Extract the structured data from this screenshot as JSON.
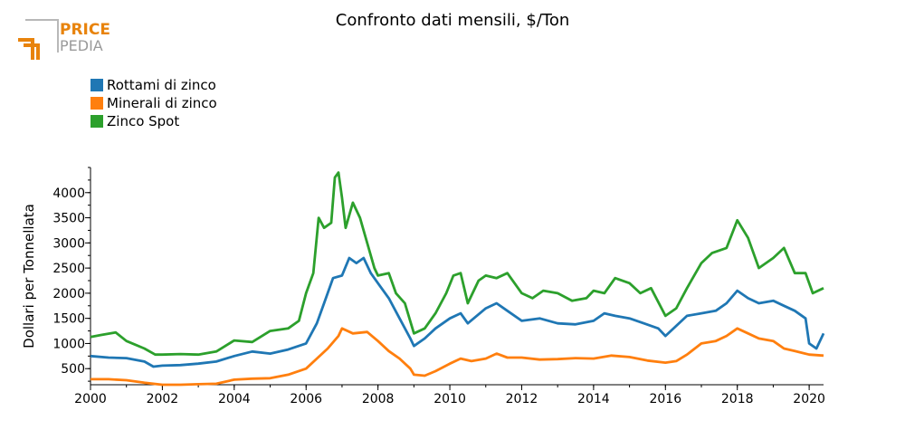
{
  "logo": {
    "line1": "PRICE",
    "line2": "PEDIA",
    "accent": "#e8830c",
    "gray": "#9a9a9a"
  },
  "chart_data": {
    "type": "line",
    "title": "Confronto dati mensili, $/Ton",
    "xlabel": "",
    "ylabel": "Dollari per Tonnellata",
    "xlim": [
      2000,
      2020.4
    ],
    "ylim": [
      180,
      4500
    ],
    "xticks": [
      2000,
      2002,
      2004,
      2006,
      2008,
      2010,
      2012,
      2014,
      2016,
      2018,
      2020
    ],
    "yticks": [
      500,
      1000,
      1500,
      2000,
      2500,
      3000,
      3500,
      4000
    ],
    "grid": false,
    "legend_position": "top-left",
    "series": [
      {
        "name": "Rottami di zinco",
        "color": "#1f77b4",
        "points": [
          [
            2000,
            750
          ],
          [
            2000.5,
            720
          ],
          [
            2001,
            710
          ],
          [
            2001.5,
            640
          ],
          [
            2001.75,
            540
          ],
          [
            2002,
            560
          ],
          [
            2002.5,
            570
          ],
          [
            2003,
            600
          ],
          [
            2003.5,
            640
          ],
          [
            2004,
            750
          ],
          [
            2004.5,
            840
          ],
          [
            2005,
            800
          ],
          [
            2005.5,
            880
          ],
          [
            2006,
            1000
          ],
          [
            2006.3,
            1400
          ],
          [
            2006.5,
            1800
          ],
          [
            2006.75,
            2300
          ],
          [
            2007,
            2350
          ],
          [
            2007.2,
            2700
          ],
          [
            2007.4,
            2600
          ],
          [
            2007.6,
            2700
          ],
          [
            2007.8,
            2400
          ],
          [
            2008,
            2200
          ],
          [
            2008.3,
            1900
          ],
          [
            2008.6,
            1500
          ],
          [
            2008.9,
            1100
          ],
          [
            2009,
            950
          ],
          [
            2009.3,
            1100
          ],
          [
            2009.6,
            1300
          ],
          [
            2010,
            1500
          ],
          [
            2010.3,
            1600
          ],
          [
            2010.5,
            1400
          ],
          [
            2011,
            1700
          ],
          [
            2011.3,
            1800
          ],
          [
            2011.6,
            1650
          ],
          [
            2012,
            1450
          ],
          [
            2012.5,
            1500
          ],
          [
            2013,
            1400
          ],
          [
            2013.5,
            1380
          ],
          [
            2014,
            1450
          ],
          [
            2014.3,
            1600
          ],
          [
            2014.6,
            1550
          ],
          [
            2015,
            1500
          ],
          [
            2015.4,
            1400
          ],
          [
            2015.8,
            1300
          ],
          [
            2016,
            1150
          ],
          [
            2016.3,
            1350
          ],
          [
            2016.6,
            1550
          ],
          [
            2017,
            1600
          ],
          [
            2017.4,
            1650
          ],
          [
            2017.7,
            1800
          ],
          [
            2018,
            2050
          ],
          [
            2018.3,
            1900
          ],
          [
            2018.6,
            1800
          ],
          [
            2019,
            1850
          ],
          [
            2019.3,
            1750
          ],
          [
            2019.6,
            1650
          ],
          [
            2019.9,
            1500
          ],
          [
            2020,
            1000
          ],
          [
            2020.2,
            900
          ],
          [
            2020.4,
            1200
          ]
        ]
      },
      {
        "name": "Minerali di zinco",
        "color": "#ff7f0e",
        "points": [
          [
            2000,
            290
          ],
          [
            2000.5,
            290
          ],
          [
            2001,
            270
          ],
          [
            2001.5,
            220
          ],
          [
            2002,
            180
          ],
          [
            2002.5,
            180
          ],
          [
            2003,
            190
          ],
          [
            2003.5,
            200
          ],
          [
            2004,
            280
          ],
          [
            2004.5,
            300
          ],
          [
            2005,
            310
          ],
          [
            2005.5,
            380
          ],
          [
            2006,
            500
          ],
          [
            2006.3,
            700
          ],
          [
            2006.6,
            900
          ],
          [
            2006.9,
            1150
          ],
          [
            2007,
            1300
          ],
          [
            2007.3,
            1200
          ],
          [
            2007.7,
            1230
          ],
          [
            2008,
            1050
          ],
          [
            2008.3,
            850
          ],
          [
            2008.6,
            700
          ],
          [
            2008.9,
            500
          ],
          [
            2009,
            380
          ],
          [
            2009.3,
            360
          ],
          [
            2009.6,
            450
          ],
          [
            2010,
            600
          ],
          [
            2010.3,
            700
          ],
          [
            2010.6,
            650
          ],
          [
            2011,
            700
          ],
          [
            2011.3,
            800
          ],
          [
            2011.6,
            720
          ],
          [
            2012,
            720
          ],
          [
            2012.5,
            680
          ],
          [
            2013,
            690
          ],
          [
            2013.5,
            710
          ],
          [
            2014,
            700
          ],
          [
            2014.5,
            760
          ],
          [
            2015,
            730
          ],
          [
            2015.5,
            660
          ],
          [
            2016,
            620
          ],
          [
            2016.3,
            650
          ],
          [
            2016.6,
            780
          ],
          [
            2017,
            1000
          ],
          [
            2017.4,
            1050
          ],
          [
            2017.7,
            1150
          ],
          [
            2018,
            1300
          ],
          [
            2018.3,
            1200
          ],
          [
            2018.6,
            1100
          ],
          [
            2019,
            1050
          ],
          [
            2019.3,
            900
          ],
          [
            2019.6,
            850
          ],
          [
            2020,
            780
          ],
          [
            2020.4,
            760
          ]
        ]
      },
      {
        "name": "Zinco Spot",
        "color": "#2ca02c",
        "points": [
          [
            2000,
            1130
          ],
          [
            2000.3,
            1170
          ],
          [
            2000.7,
            1220
          ],
          [
            2001,
            1050
          ],
          [
            2001.5,
            900
          ],
          [
            2001.8,
            780
          ],
          [
            2002,
            780
          ],
          [
            2002.5,
            790
          ],
          [
            2003,
            780
          ],
          [
            2003.5,
            840
          ],
          [
            2004,
            1060
          ],
          [
            2004.5,
            1030
          ],
          [
            2005,
            1250
          ],
          [
            2005.5,
            1300
          ],
          [
            2005.8,
            1450
          ],
          [
            2006,
            2000
          ],
          [
            2006.2,
            2400
          ],
          [
            2006.35,
            3500
          ],
          [
            2006.5,
            3300
          ],
          [
            2006.7,
            3400
          ],
          [
            2006.8,
            4300
          ],
          [
            2006.9,
            4400
          ],
          [
            2007,
            3900
          ],
          [
            2007.1,
            3300
          ],
          [
            2007.3,
            3800
          ],
          [
            2007.5,
            3500
          ],
          [
            2007.7,
            3000
          ],
          [
            2007.9,
            2500
          ],
          [
            2008,
            2350
          ],
          [
            2008.3,
            2400
          ],
          [
            2008.5,
            2000
          ],
          [
            2008.75,
            1800
          ],
          [
            2009,
            1200
          ],
          [
            2009.3,
            1300
          ],
          [
            2009.6,
            1600
          ],
          [
            2009.9,
            2000
          ],
          [
            2010.1,
            2350
          ],
          [
            2010.3,
            2400
          ],
          [
            2010.5,
            1800
          ],
          [
            2010.8,
            2250
          ],
          [
            2011,
            2350
          ],
          [
            2011.3,
            2300
          ],
          [
            2011.6,
            2400
          ],
          [
            2012,
            2000
          ],
          [
            2012.3,
            1900
          ],
          [
            2012.6,
            2050
          ],
          [
            2013,
            2000
          ],
          [
            2013.4,
            1850
          ],
          [
            2013.8,
            1900
          ],
          [
            2014,
            2050
          ],
          [
            2014.3,
            2000
          ],
          [
            2014.6,
            2300
          ],
          [
            2015,
            2200
          ],
          [
            2015.3,
            2000
          ],
          [
            2015.6,
            2100
          ],
          [
            2016,
            1550
          ],
          [
            2016.3,
            1700
          ],
          [
            2016.6,
            2100
          ],
          [
            2017,
            2600
          ],
          [
            2017.3,
            2800
          ],
          [
            2017.7,
            2900
          ],
          [
            2018,
            3450
          ],
          [
            2018.3,
            3100
          ],
          [
            2018.6,
            2500
          ],
          [
            2019,
            2700
          ],
          [
            2019.3,
            2900
          ],
          [
            2019.6,
            2400
          ],
          [
            2019.9,
            2400
          ],
          [
            2020.1,
            2000
          ],
          [
            2020.4,
            2100
          ]
        ]
      }
    ]
  }
}
